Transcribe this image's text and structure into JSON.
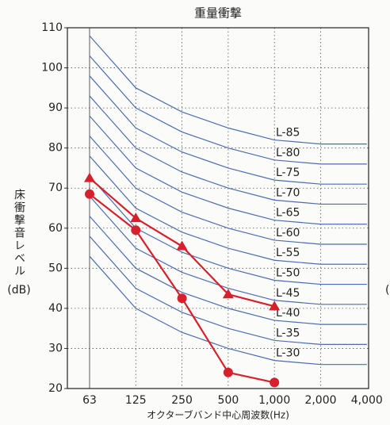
{
  "chart_data": {
    "type": "line",
    "title": "重量衝撃",
    "y_label": [
      "床衝撃音レベル",
      "(dB)"
    ],
    "x_label": "オクターブバンド中心周波数(Hz)",
    "categories": [
      "63",
      "125",
      "250",
      "500",
      "1,000",
      "2,000",
      "4,000"
    ],
    "ylim": [
      20,
      110
    ],
    "yticks": [
      20,
      30,
      40,
      50,
      60,
      70,
      80,
      90,
      100,
      110
    ],
    "grid": true,
    "reference_color": "#4b6db0",
    "series": [
      {
        "name": "L-85",
        "values": [
          108,
          95,
          89,
          85,
          82,
          81,
          81
        ]
      },
      {
        "name": "L-80",
        "values": [
          103,
          90,
          84,
          80,
          77,
          76,
          76
        ]
      },
      {
        "name": "L-75",
        "values": [
          98,
          85,
          79,
          75,
          72,
          71,
          71
        ]
      },
      {
        "name": "L-70",
        "values": [
          93,
          80,
          74,
          70,
          67,
          66,
          66
        ]
      },
      {
        "name": "L-65",
        "values": [
          88,
          75,
          69,
          65,
          62,
          61,
          61
        ]
      },
      {
        "name": "L-60",
        "values": [
          83,
          70,
          64,
          60,
          57,
          56,
          56
        ]
      },
      {
        "name": "L-55",
        "values": [
          78,
          65,
          59,
          55,
          52,
          51,
          51
        ]
      },
      {
        "name": "L-50",
        "values": [
          73,
          60,
          54,
          50,
          47,
          46,
          46
        ]
      },
      {
        "name": "L-45",
        "values": [
          68,
          55,
          49,
          45,
          42,
          41,
          41
        ]
      },
      {
        "name": "L-40",
        "values": [
          63,
          50,
          44,
          40,
          37,
          36,
          36
        ]
      },
      {
        "name": "L-35",
        "values": [
          58,
          45,
          39,
          35,
          32,
          31,
          31
        ]
      },
      {
        "name": "L-30",
        "values": [
          53,
          40,
          34,
          30,
          27,
          26,
          26
        ]
      }
    ],
    "measured": [
      {
        "marker": "triangle",
        "color": "#d8202c",
        "values": [
          72.5,
          62.5,
          55.5,
          43.5,
          40.5,
          null,
          null
        ]
      },
      {
        "marker": "circle",
        "color": "#d8202c",
        "values": [
          68.5,
          59.5,
          42.5,
          24,
          21.5,
          null,
          null
        ]
      }
    ],
    "fragment": "("
  }
}
